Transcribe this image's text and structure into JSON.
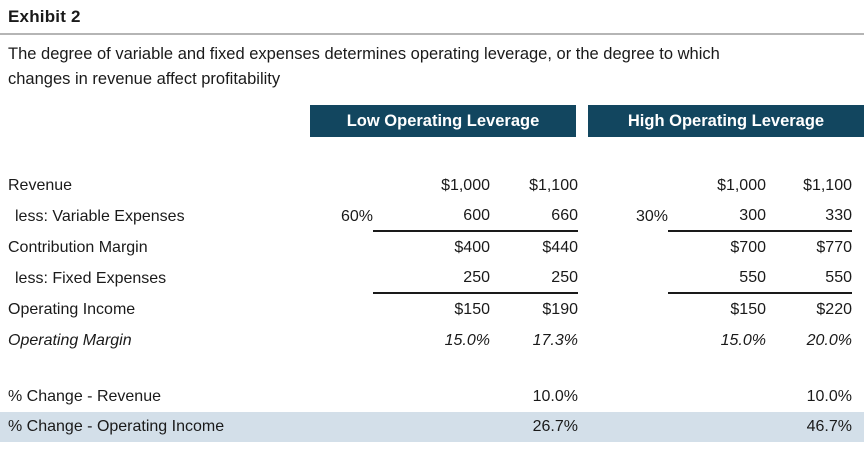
{
  "exhibit": {
    "title": "Exhibit 2",
    "subtitle_lines": [
      "The degree of variable and fixed expenses determines operating leverage, or the degree to which",
      "changes in revenue affect profitability"
    ]
  },
  "colors": {
    "group_header_bar": "#12465f",
    "highlight_row": "#d3dfe9",
    "title_rule": "#b5b5b5",
    "text": "#1a1a1a"
  },
  "group_headers": {
    "low": "Low Operating Leverage",
    "high": "High Operating Leverage"
  },
  "table": {
    "rows": [
      {
        "label": "Revenue",
        "low_pct": "",
        "low_v1": "$1,000",
        "low_v2": "$1,100",
        "high_pct": "",
        "high_v1": "$1,000",
        "high_v2": "$1,100"
      },
      {
        "label": "less: Variable Expenses",
        "low_pct": "60%",
        "low_v1": "600",
        "low_v2": "660",
        "high_pct": "30%",
        "high_v1": "300",
        "high_v2": "330"
      },
      {
        "label": "Contribution Margin",
        "low_pct": "",
        "low_v1": "$400",
        "low_v2": "$440",
        "high_pct": "",
        "high_v1": "$700",
        "high_v2": "$770"
      },
      {
        "label": "less: Fixed Expenses",
        "low_pct": "",
        "low_v1": "250",
        "low_v2": "250",
        "high_pct": "",
        "high_v1": "550",
        "high_v2": "550"
      },
      {
        "label": "Operating Income",
        "low_pct": "",
        "low_v1": "$150",
        "low_v2": "$190",
        "high_pct": "",
        "high_v1": "$150",
        "high_v2": "$220"
      },
      {
        "label": "Operating Margin",
        "low_pct": "",
        "low_v1": "15.0%",
        "low_v2": "17.3%",
        "high_pct": "",
        "high_v1": "15.0%",
        "high_v2": "20.0%"
      }
    ],
    "change_rows": [
      {
        "label": "% Change - Revenue",
        "low": "10.0%",
        "high": "10.0%"
      },
      {
        "label": "% Change - Operating Income",
        "low": "26.7%",
        "high": "46.7%"
      }
    ]
  }
}
